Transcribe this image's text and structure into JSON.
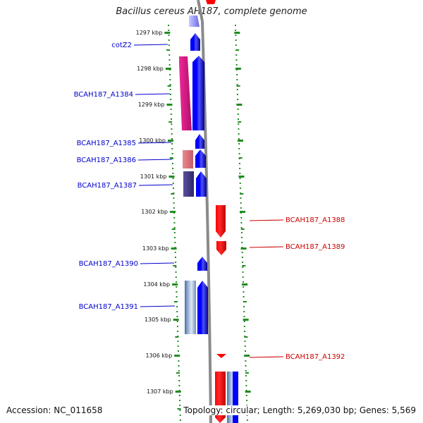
{
  "title": "Bacillus cereus AH187, complete genome",
  "accession": "Accession: NC_011658",
  "summary": "Topology: circular; Length: 5,269,030 bp; Genes: 5,569",
  "axis": {
    "ticks": [
      "1297 kbp",
      "1298 kbp",
      "1299 kbp",
      "1300 kbp",
      "1301 kbp",
      "1302 kbp",
      "1303 kbp",
      "1304 kbp",
      "1305 kbp",
      "1306 kbp",
      "1307 kbp"
    ]
  },
  "genes": {
    "left": [
      {
        "label": "cotZ2",
        "color": "#0000cc"
      },
      {
        "label": "BCAH187_A1384",
        "color": "#0000cc"
      },
      {
        "label": "BCAH187_A1385",
        "color": "#0000cc"
      },
      {
        "label": "BCAH187_A1386",
        "color": "#0000cc"
      },
      {
        "label": "BCAH187_A1387",
        "color": "#0000cc"
      },
      {
        "label": "BCAH187_A1390",
        "color": "#0000cc"
      },
      {
        "label": "BCAH187_A1391",
        "color": "#0000cc"
      }
    ],
    "right": [
      {
        "label": "BCAH187_A1388",
        "color": "#cc0000"
      },
      {
        "label": "BCAH187_A1389",
        "color": "#cc0000"
      },
      {
        "label": "BCAH187_A1392",
        "color": "#cc0000"
      }
    ]
  },
  "colors": {
    "forward": "#0000ff",
    "reverse": "#ff0000",
    "magenta": "#e8188c",
    "pink": "#e07f86",
    "indigo": "#4a3f8e",
    "steel": "#6d8fbf",
    "backbone": "#888888",
    "tick": "#228b22"
  }
}
